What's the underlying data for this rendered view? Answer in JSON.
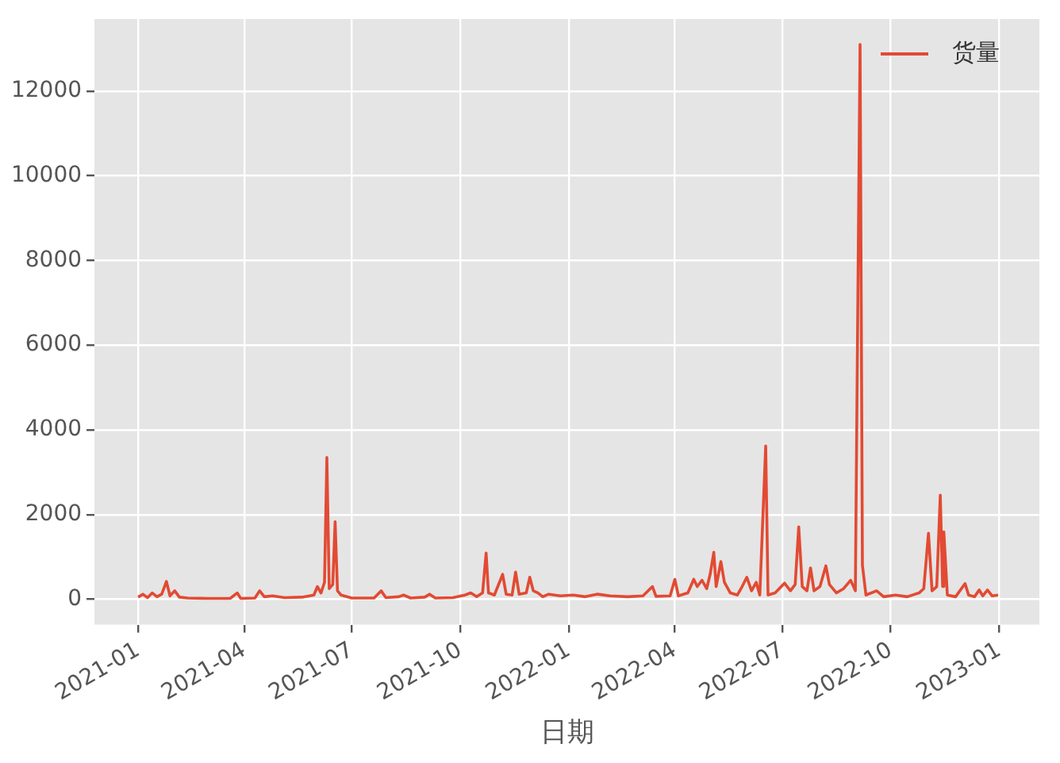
{
  "chart_data": {
    "type": "line",
    "xlabel": "日期",
    "legend": "top right",
    "grid": true,
    "marker": "none",
    "line_style": "solid",
    "xlim": [
      "2020-11-25",
      "2023-02-04"
    ],
    "xticks": [
      "2021-01",
      "2021-04",
      "2021-07",
      "2021-10",
      "2022-01",
      "2022-04",
      "2022-07",
      "2022-10",
      "2023-01"
    ],
    "ylim": [
      -600,
      13700
    ],
    "yticks": [
      0,
      2000,
      4000,
      6000,
      8000,
      10000,
      12000
    ],
    "series": [
      {
        "name": "货量",
        "color": "#e24a33",
        "x": [
          "2021-01-01",
          "2021-01-05",
          "2021-01-09",
          "2021-01-13",
          "2021-01-17",
          "2021-01-21",
          "2021-01-25",
          "2021-01-28",
          "2021-02-01",
          "2021-02-05",
          "2021-02-12",
          "2021-03-01",
          "2021-03-20",
          "2021-03-26",
          "2021-03-29",
          "2021-04-10",
          "2021-04-14",
          "2021-04-18",
          "2021-04-25",
          "2021-05-05",
          "2021-05-20",
          "2021-05-30",
          "2021-06-02",
          "2021-06-05",
          "2021-06-08",
          "2021-06-10",
          "2021-06-12",
          "2021-06-15",
          "2021-06-17",
          "2021-06-19",
          "2021-06-22",
          "2021-07-01",
          "2021-07-20",
          "2021-07-26",
          "2021-07-30",
          "2021-08-10",
          "2021-08-14",
          "2021-08-20",
          "2021-09-01",
          "2021-09-05",
          "2021-09-10",
          "2021-09-25",
          "2021-10-05",
          "2021-10-10",
          "2021-10-15",
          "2021-10-20",
          "2021-10-23",
          "2021-10-25",
          "2021-10-30",
          "2021-11-06",
          "2021-11-09",
          "2021-11-14",
          "2021-11-17",
          "2021-11-20",
          "2021-11-26",
          "2021-11-29",
          "2021-12-02",
          "2021-12-06",
          "2021-12-10",
          "2021-12-15",
          "2021-12-25",
          "2022-01-05",
          "2022-01-15",
          "2022-01-25",
          "2022-02-05",
          "2022-02-20",
          "2022-03-05",
          "2022-03-13",
          "2022-03-16",
          "2022-03-28",
          "2022-04-01",
          "2022-04-04",
          "2022-04-12",
          "2022-04-17",
          "2022-04-20",
          "2022-04-24",
          "2022-04-28",
          "2022-05-01",
          "2022-05-04",
          "2022-05-06",
          "2022-05-10",
          "2022-05-13",
          "2022-05-18",
          "2022-05-24",
          "2022-05-28",
          "2022-06-01",
          "2022-06-05",
          "2022-06-09",
          "2022-06-12",
          "2022-06-17",
          "2022-06-19",
          "2022-06-25",
          "2022-07-03",
          "2022-07-08",
          "2022-07-12",
          "2022-07-15",
          "2022-07-18",
          "2022-07-22",
          "2022-07-25",
          "2022-07-28",
          "2022-08-02",
          "2022-08-07",
          "2022-08-10",
          "2022-08-16",
          "2022-08-22",
          "2022-08-28",
          "2022-09-01",
          "2022-09-05",
          "2022-09-07",
          "2022-09-10",
          "2022-09-19",
          "2022-09-25",
          "2022-10-05",
          "2022-10-15",
          "2022-10-25",
          "2022-10-29",
          "2022-11-02",
          "2022-11-05",
          "2022-11-09",
          "2022-11-12",
          "2022-11-14",
          "2022-11-15",
          "2022-11-18",
          "2022-11-25",
          "2022-12-03",
          "2022-12-06",
          "2022-12-11",
          "2022-12-15",
          "2022-12-18",
          "2022-12-22",
          "2022-12-26",
          "2022-12-31"
        ],
        "values": [
          50,
          120,
          40,
          150,
          60,
          120,
          420,
          80,
          200,
          50,
          30,
          20,
          20,
          150,
          20,
          30,
          200,
          60,
          80,
          40,
          50,
          100,
          300,
          150,
          400,
          3350,
          250,
          350,
          1830,
          200,
          100,
          30,
          30,
          200,
          40,
          60,
          100,
          30,
          50,
          120,
          30,
          40,
          100,
          150,
          60,
          150,
          1090,
          150,
          100,
          590,
          120,
          100,
          640,
          120,
          150,
          520,
          200,
          150,
          60,
          120,
          80,
          100,
          60,
          120,
          80,
          60,
          80,
          300,
          70,
          80,
          470,
          80,
          150,
          470,
          300,
          450,
          250,
          600,
          1110,
          300,
          890,
          400,
          150,
          100,
          300,
          520,
          200,
          400,
          100,
          3620,
          100,
          150,
          380,
          200,
          350,
          1710,
          300,
          200,
          740,
          200,
          300,
          790,
          350,
          150,
          250,
          450,
          200,
          13100,
          800,
          100,
          200,
          60,
          100,
          60,
          150,
          250,
          1560,
          200,
          300,
          2460,
          300,
          1590,
          100,
          60,
          370,
          100,
          60,
          220,
          80,
          220,
          80,
          100
        ]
      }
    ]
  }
}
